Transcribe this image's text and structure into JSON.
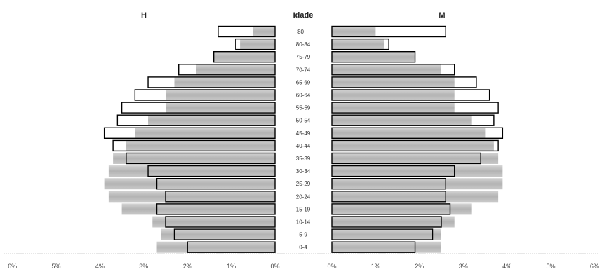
{
  "chart_data": {
    "type": "bar",
    "left_label": "H",
    "center_label": "Idade",
    "right_label": "M",
    "categories": [
      "80 +",
      "80-84",
      "75-79",
      "70-74",
      "65-69",
      "60-64",
      "55-59",
      "50-54",
      "45-49",
      "40-44",
      "35-39",
      "30-34",
      "25-29",
      "20-24",
      "15-19",
      "10-14",
      "5-9",
      "0-4"
    ],
    "x_ticks_left": [
      "6%",
      "5%",
      "4%",
      "3%",
      "2%",
      "1%",
      "0%"
    ],
    "x_ticks_right": [
      "0%",
      "1%",
      "2%",
      "3%",
      "4%",
      "5%",
      "6%"
    ],
    "xlim": [
      0,
      6
    ],
    "series": [
      {
        "side": "left",
        "outline": [
          1.3,
          0.9,
          1.4,
          2.2,
          2.9,
          3.2,
          3.5,
          3.6,
          3.9,
          3.7,
          3.4,
          2.9,
          2.7,
          2.5,
          2.7,
          2.5,
          2.3,
          2.0
        ],
        "fill": [
          0.5,
          0.8,
          1.4,
          1.8,
          2.3,
          2.5,
          2.5,
          2.9,
          3.2,
          3.4,
          3.7,
          3.8,
          3.9,
          3.8,
          3.5,
          2.8,
          2.6,
          2.7
        ]
      },
      {
        "side": "right",
        "outline": [
          2.6,
          1.3,
          1.9,
          2.8,
          3.3,
          3.6,
          3.8,
          3.7,
          3.9,
          3.8,
          3.4,
          2.8,
          2.6,
          2.6,
          2.7,
          2.5,
          2.3,
          1.9
        ],
        "fill": [
          1.0,
          1.2,
          1.9,
          2.5,
          2.8,
          2.8,
          2.8,
          3.2,
          3.5,
          3.7,
          3.8,
          3.9,
          3.9,
          3.8,
          3.2,
          2.8,
          2.5,
          2.5
        ]
      }
    ],
    "colors": {
      "fill": "#bdbdbd",
      "outline": "#000000",
      "baseline": "#cfcfcf"
    }
  }
}
